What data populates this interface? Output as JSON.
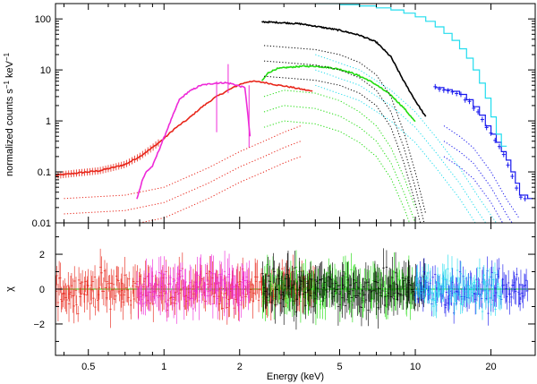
{
  "chart_data": [
    {
      "panel": "spectrum",
      "type": "line",
      "xscale": "log",
      "yscale": "log",
      "xlim": [
        0.37,
        30
      ],
      "ylim": [
        0.01,
        200
      ],
      "ylabel": "normalized counts s",
      "ylabel_sup1": "−1",
      "ylabel_mid": " keV",
      "ylabel_sup2": "−1",
      "yticks": [
        0.01,
        0.1,
        1,
        10,
        100
      ],
      "ytick_labels": [
        "0.01",
        "0.1",
        "1",
        "10",
        "100"
      ],
      "series": [
        {
          "name": "red",
          "color": "#e8261a",
          "style": "data",
          "x": [
            0.37,
            0.45,
            0.55,
            0.62,
            0.7,
            0.8,
            0.9,
            1.0,
            1.1,
            1.25,
            1.4,
            1.6,
            1.8,
            2.0,
            2.2,
            2.5,
            2.8,
            3.2,
            3.6,
            3.9
          ],
          "y": [
            0.085,
            0.095,
            0.105,
            0.12,
            0.14,
            0.2,
            0.3,
            0.45,
            0.7,
            1.1,
            1.8,
            2.9,
            4.0,
            5.2,
            6.0,
            5.7,
            5.1,
            4.6,
            4.1,
            3.8
          ]
        },
        {
          "name": "magenta",
          "color": "#ee2ad8",
          "style": "data",
          "x": [
            0.78,
            0.8,
            0.82,
            0.85,
            0.9,
            1.15,
            1.25,
            1.4,
            1.6,
            1.75,
            1.85,
            2.0,
            2.1,
            2.2
          ],
          "y": [
            0.03,
            0.045,
            0.07,
            0.1,
            0.13,
            2.6,
            3.7,
            5.0,
            5.5,
            5.6,
            5.4,
            4.8,
            4.5,
            0.5
          ]
        },
        {
          "name": "green",
          "color": "#22dd11",
          "style": "data",
          "x": [
            2.45,
            2.6,
            2.8,
            3.0,
            3.3,
            3.6,
            4.0,
            4.5,
            5.0,
            5.5,
            6.0,
            6.5,
            7.0,
            8.0,
            9.0,
            10.0
          ],
          "y": [
            6.0,
            8.8,
            10.5,
            11.0,
            11.5,
            11.8,
            11.8,
            11.2,
            10.3,
            9.0,
            7.6,
            6.3,
            5.1,
            3.2,
            1.8,
            0.95
          ]
        },
        {
          "name": "black",
          "color": "#000000",
          "style": "data",
          "x": [
            2.45,
            2.7,
            3.0,
            3.5,
            4.0,
            5.0,
            6.0,
            7.0,
            8.0,
            9.0,
            10.0,
            11.0
          ],
          "y": [
            88,
            86,
            84,
            80,
            72,
            60,
            48,
            35,
            18,
            6.0,
            2.5,
            1.2
          ]
        },
        {
          "name": "blue",
          "color": "#1a1aee",
          "style": "step",
          "x": [
            12.0,
            13.0,
            14.0,
            15.0,
            16.0,
            17.0,
            18.0,
            19.0,
            20.0,
            21.0,
            22.0,
            23.0,
            24.0,
            25.0,
            26.0,
            28.0
          ],
          "y": [
            4.5,
            4.1,
            3.8,
            3.3,
            2.6,
            1.9,
            1.3,
            0.8,
            0.55,
            0.38,
            0.25,
            0.17,
            0.1,
            0.06,
            0.035,
            0.03
          ]
        },
        {
          "name": "cyan",
          "color": "#22ddee",
          "style": "step",
          "x": [
            4.0,
            5.0,
            6.0,
            7.0,
            8.0,
            9.0,
            10.0,
            11.0,
            12.0,
            13.0,
            14.0,
            15.0,
            16.0,
            17.0,
            18.0,
            19.0,
            20.0,
            21.0,
            22.0
          ],
          "y": [
            200,
            190,
            180,
            165,
            150,
            130,
            110,
            90,
            70,
            52,
            38,
            26,
            17,
            10,
            5.5,
            2.8,
            1.2,
            0.55,
            0.32
          ]
        },
        {
          "name": "red-model-components",
          "color": "#e8261a",
          "style": "dotted",
          "x": [
            0.4,
            0.7,
            1.0,
            1.5,
            2.0,
            2.5,
            3.0,
            3.5
          ],
          "y": [
            0.03,
            0.035,
            0.05,
            0.12,
            0.25,
            0.4,
            0.6,
            0.8
          ]
        },
        {
          "name": "green-model-components",
          "color": "#22dd11",
          "style": "dotted",
          "x": [
            2.5,
            3.0,
            4.0,
            5.0,
            6.0,
            7.0,
            8.0,
            9.0,
            10.0
          ],
          "y": [
            3.0,
            4.0,
            3.5,
            2.5,
            1.5,
            0.8,
            0.3,
            0.08,
            0.02
          ]
        },
        {
          "name": "black-model-components",
          "color": "#000000",
          "style": "dotted",
          "x": [
            2.5,
            3.0,
            4.0,
            5.0,
            6.0,
            7.0,
            8.0,
            9.0,
            10.0,
            11.0
          ],
          "y": [
            30,
            28,
            25,
            20,
            14,
            8.0,
            3.0,
            0.6,
            0.1,
            0.015
          ]
        },
        {
          "name": "blue-model-components",
          "color": "#1a1aee",
          "style": "dotted",
          "x": [
            13.0,
            15.0,
            17.0,
            20.0,
            23.0,
            26.0
          ],
          "y": [
            0.8,
            0.5,
            0.3,
            0.1,
            0.03,
            0.012
          ]
        },
        {
          "name": "cyan-model-components",
          "color": "#22ddee",
          "style": "dotted",
          "x": [
            4.0,
            6.0,
            8.0,
            10.0,
            12.0,
            15.0,
            18.0,
            21.0
          ],
          "y": [
            20,
            10,
            4.0,
            1.5,
            0.5,
            0.12,
            0.03,
            0.01
          ]
        }
      ]
    },
    {
      "panel": "residuals",
      "type": "scatter",
      "xscale": "log",
      "xlim": [
        0.37,
        30
      ],
      "ylim": [
        -3.8,
        3.8
      ],
      "ylabel": "χ",
      "xlabel": "Energy (keV)",
      "yticks": [
        -2,
        0,
        2
      ],
      "ytick_labels": [
        "−2",
        "0",
        "2"
      ],
      "xticks": [
        0.5,
        1,
        2,
        5,
        10,
        20
      ],
      "xtick_labels": [
        "0.5",
        "1",
        "2",
        "5",
        "10",
        "20"
      ],
      "zero_line_color": "#22dd11",
      "residual_groups": [
        {
          "name": "red",
          "color": "#e8261a",
          "x_range": [
            0.37,
            4.0
          ],
          "error_range": [
            0.8,
            2.2
          ],
          "spread": 1.0
        },
        {
          "name": "magenta",
          "color": "#ee2ad8",
          "x_range": [
            0.78,
            2.2
          ],
          "error_range": [
            0.9,
            2.4
          ],
          "spread": 1.1
        },
        {
          "name": "green",
          "color": "#22dd11",
          "x_range": [
            2.45,
            10.0
          ],
          "error_range": [
            0.9,
            2.5
          ],
          "spread": 1.1
        },
        {
          "name": "black",
          "color": "#000000",
          "x_range": [
            2.45,
            11.0
          ],
          "error_range": [
            0.9,
            2.5
          ],
          "spread": 1.1
        },
        {
          "name": "blue",
          "color": "#1a1aee",
          "x_range": [
            10.0,
            28.0
          ],
          "error_range": [
            0.7,
            1.8
          ],
          "spread": 1.1
        },
        {
          "name": "cyan",
          "color": "#22ddee",
          "x_range": [
            10.0,
            22.0
          ],
          "error_range": [
            0.7,
            1.8
          ],
          "spread": 1.1
        }
      ]
    }
  ]
}
